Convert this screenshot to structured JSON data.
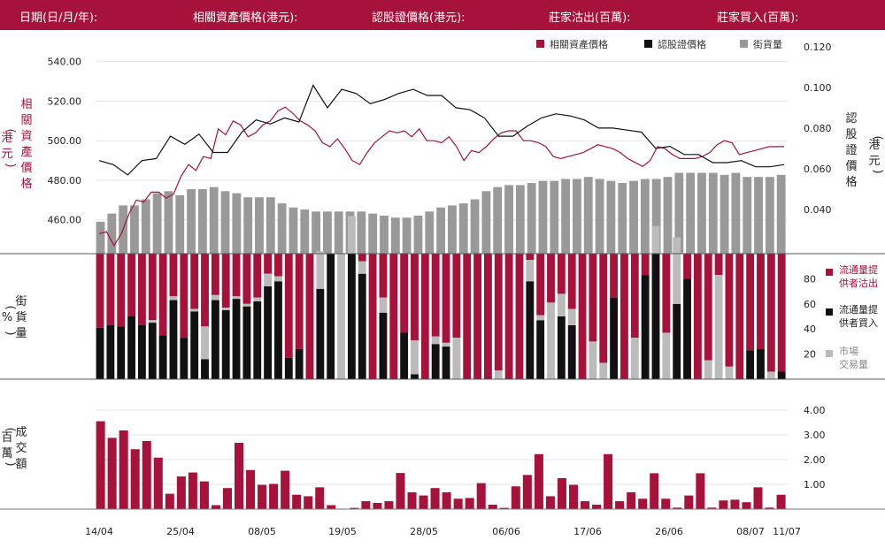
{
  "header": {
    "date_label": "日期(日/月/年):",
    "underlying_label": "相關資產價格(港元):",
    "warrant_label": "認股證價格(港元):",
    "mm_sell_label": "莊家沽出(百萬):",
    "mm_buy_label": "莊家買入(百萬):"
  },
  "colors": {
    "red": "#a6123a",
    "black": "#111111",
    "gray": "#999999",
    "lightgray": "#bbbbbb",
    "header_bg": "#a6123a"
  },
  "chart_data": [
    {
      "type": "line",
      "legend": [
        {
          "name": "相關資產價格",
          "color": "#a6123a"
        },
        {
          "name": "認股證價格",
          "color": "#111111"
        },
        {
          "name": "街貨量",
          "color": "#999999"
        }
      ],
      "left_axis": {
        "label": "相關資產價格 (港元)",
        "ticks": [
          "540.00",
          "520.00",
          "500.00",
          "480.00",
          "460.00"
        ],
        "ylim": [
          442.9,
          548.8
        ]
      },
      "right_axis": {
        "label": "認股證價格 (港元)",
        "ticks": [
          "0.120",
          "0.100",
          "0.080",
          "0.060",
          "0.040"
        ],
        "ylim": [
          0.0183,
          0.1212
        ]
      },
      "series": [
        {
          "name": "相關資產價格",
          "axis": "left",
          "values": [
            453,
            454,
            447,
            453,
            463,
            470,
            469,
            474,
            474,
            471,
            473,
            482,
            488,
            485,
            492,
            491,
            506,
            503,
            510,
            508,
            502,
            504,
            508,
            510,
            515,
            517,
            514,
            510,
            508,
            505,
            499,
            497,
            501,
            496,
            490,
            488,
            494,
            499,
            502,
            505,
            504,
            505,
            502,
            506,
            500,
            500,
            499,
            502,
            497,
            490,
            495,
            494,
            497,
            501,
            504,
            505,
            505,
            500,
            500,
            499,
            497,
            492,
            491,
            492,
            493,
            494,
            496,
            498,
            497,
            496,
            494,
            491,
            489,
            487,
            490,
            497,
            496,
            493,
            491,
            491,
            491,
            492,
            494,
            498,
            500,
            499,
            493,
            494,
            495,
            496,
            497,
            497,
            497
          ],
          "note": ""
        },
        {
          "name": "認股證價格",
          "axis": "right",
          "values": [
            0.064,
            0.062,
            0.057,
            0.064,
            0.065,
            0.076,
            0.072,
            0.077,
            0.068,
            0.068,
            0.078,
            0.084,
            0.082,
            0.085,
            0.083,
            0.101,
            0.09,
            0.099,
            0.097,
            0.092,
            0.094,
            0.097,
            0.099,
            0.096,
            0.096,
            0.09,
            0.089,
            0.085,
            0.076,
            0.076,
            0.081,
            0.085,
            0.087,
            0.086,
            0.084,
            0.08,
            0.08,
            0.079,
            0.078,
            0.07,
            0.071,
            0.067,
            0.067,
            0.063,
            0.063,
            0.064,
            0.061,
            0.061,
            0.062
          ]
        },
        {
          "name": "街貨量",
          "axis": "right",
          "values": [
            0.034,
            0.038,
            0.042,
            0.042,
            0.045,
            0.048,
            0.049,
            0.047,
            0.05,
            0.05,
            0.051,
            0.049,
            0.048,
            0.046,
            0.046,
            0.046,
            0.043,
            0.041,
            0.04,
            0.039,
            0.039,
            0.039,
            0.039,
            0.039,
            0.038,
            0.037,
            0.036,
            0.036,
            0.037,
            0.039,
            0.041,
            0.042,
            0.043,
            0.045,
            0.049,
            0.051,
            0.052,
            0.052,
            0.053,
            0.054,
            0.054,
            0.055,
            0.055,
            0.056,
            0.055,
            0.054,
            0.053,
            0.054,
            0.055,
            0.055,
            0.056,
            0.058,
            0.058,
            0.058,
            0.058,
            0.057,
            0.058,
            0.056,
            0.056,
            0.056,
            0.057
          ]
        }
      ]
    },
    {
      "type": "bar",
      "stacked": true,
      "axis_label": "街貨量 (%)",
      "ticks": [
        "80",
        "60",
        "40",
        "20"
      ],
      "ylim": [
        0,
        100
      ],
      "legend": [
        {
          "name": "流通量提供者沽出",
          "color": "#a6123a"
        },
        {
          "name": "流通量提供者買入",
          "color": "#111111"
        },
        {
          "name": "市場交易量",
          "color": "#bbbbbb"
        }
      ],
      "note": ""
    },
    {
      "type": "bar",
      "axis_label": "成交額 (百萬)",
      "ticks": [
        "4.00",
        "3.00",
        "2.00",
        "1.00"
      ],
      "ylim": [
        0,
        4.0
      ],
      "values": [
        3.55,
        2.88,
        3.18,
        2.42,
        2.75,
        2.08,
        0.62,
        1.32,
        1.48,
        1.12,
        0.16,
        0.85,
        2.68,
        1.58,
        0.98,
        1.02,
        1.55,
        0.58,
        0.52,
        0.88,
        0.16,
        0.02,
        0.05,
        0.32,
        0.25,
        0.32,
        1.46,
        0.68,
        0.55,
        0.85,
        0.68,
        0.42,
        0.45,
        1.05,
        0.18,
        0.05,
        0.92,
        1.38,
        2.22,
        0.52,
        1.25,
        0.98,
        0.32,
        0.18,
        2.22,
        0.32,
        0.68,
        0.42,
        1.45,
        0.42,
        0.06,
        0.55,
        1.45,
        0.06,
        0.35,
        0.38,
        0.28,
        0.88,
        0.06,
        0.58
      ],
      "x_ticks": [
        "14/04",
        "25/04",
        "08/05",
        "19/05",
        "28/05",
        "06/06",
        "17/06",
        "26/06",
        "08/07",
        "11/07"
      ]
    }
  ]
}
